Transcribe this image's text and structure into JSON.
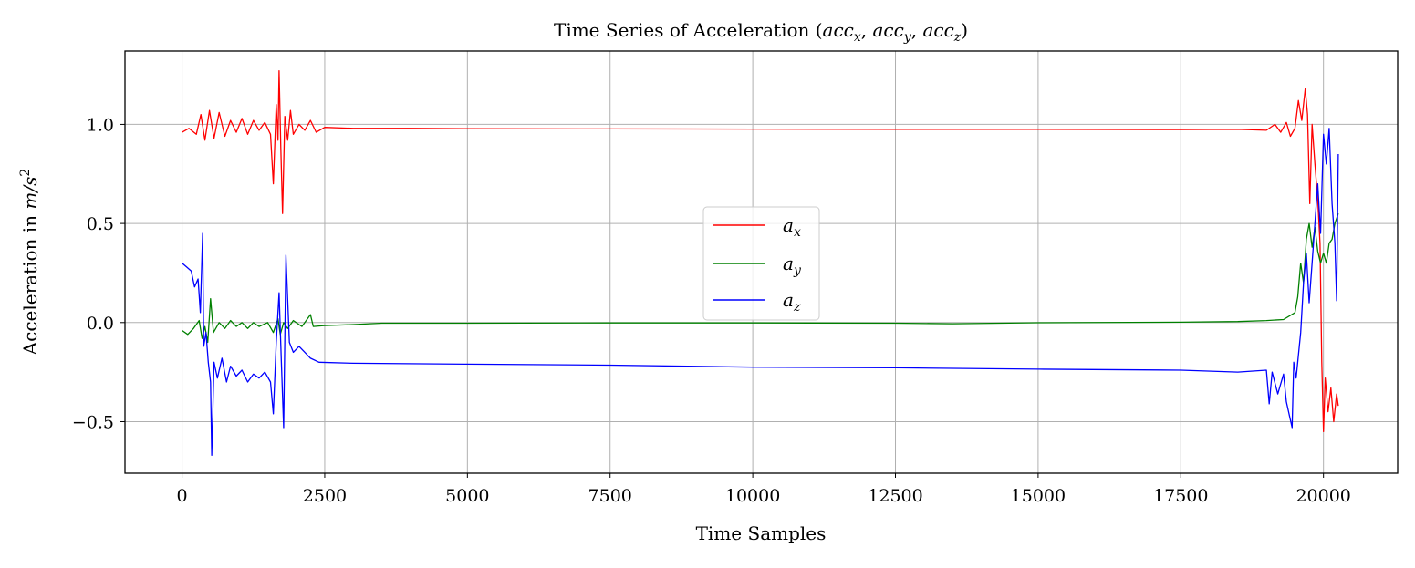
{
  "chart_data": {
    "type": "line",
    "title": "Time Series of Acceleration (accₓ, accᵧ, acc_z)",
    "xlabel": "Time Samples",
    "ylabel": "Acceleration in m/s²",
    "xlim": [
      -1000,
      21300
    ],
    "ylim": [
      -0.76,
      1.37
    ],
    "xticks": [
      0,
      2500,
      5000,
      7500,
      10000,
      12500,
      15000,
      17500,
      20000
    ],
    "xtick_labels": [
      "0",
      "2500",
      "5000",
      "7500",
      "10000",
      "12500",
      "15000",
      "17500",
      "20000"
    ],
    "yticks": [
      -0.5,
      0.0,
      0.5,
      1.0
    ],
    "ytick_labels": [
      "−0.5",
      "0.0",
      "0.5",
      "1.0"
    ],
    "grid": true,
    "legend_position": "center",
    "series": [
      {
        "name": "aₓ",
        "color": "#ff0000",
        "points": [
          [
            0,
            0.96
          ],
          [
            120,
            0.98
          ],
          [
            250,
            0.95
          ],
          [
            330,
            1.05
          ],
          [
            400,
            0.92
          ],
          [
            480,
            1.07
          ],
          [
            560,
            0.93
          ],
          [
            650,
            1.06
          ],
          [
            750,
            0.94
          ],
          [
            850,
            1.02
          ],
          [
            950,
            0.96
          ],
          [
            1050,
            1.03
          ],
          [
            1150,
            0.95
          ],
          [
            1250,
            1.02
          ],
          [
            1350,
            0.97
          ],
          [
            1450,
            1.01
          ],
          [
            1550,
            0.95
          ],
          [
            1600,
            0.7
          ],
          [
            1650,
            1.1
          ],
          [
            1680,
            0.92
          ],
          [
            1700,
            1.27
          ],
          [
            1730,
            0.88
          ],
          [
            1760,
            0.55
          ],
          [
            1800,
            1.04
          ],
          [
            1850,
            0.92
          ],
          [
            1900,
            1.07
          ],
          [
            1950,
            0.95
          ],
          [
            2050,
            1.0
          ],
          [
            2150,
            0.97
          ],
          [
            2250,
            1.02
          ],
          [
            2350,
            0.96
          ],
          [
            2500,
            0.985
          ],
          [
            3000,
            0.98
          ],
          [
            4000,
            0.98
          ],
          [
            5000,
            0.978
          ],
          [
            7500,
            0.977
          ],
          [
            10000,
            0.976
          ],
          [
            12500,
            0.975
          ],
          [
            15000,
            0.975
          ],
          [
            17500,
            0.974
          ],
          [
            18500,
            0.975
          ],
          [
            19000,
            0.97
          ],
          [
            19150,
            1.0
          ],
          [
            19250,
            0.96
          ],
          [
            19350,
            1.01
          ],
          [
            19420,
            0.94
          ],
          [
            19500,
            0.98
          ],
          [
            19560,
            1.12
          ],
          [
            19620,
            1.02
          ],
          [
            19680,
            1.18
          ],
          [
            19720,
            1.05
          ],
          [
            19760,
            0.6
          ],
          [
            19800,
            1.0
          ],
          [
            19850,
            0.8
          ],
          [
            19900,
            0.62
          ],
          [
            19940,
            0.4
          ],
          [
            19970,
            -0.2
          ],
          [
            20000,
            -0.55
          ],
          [
            20030,
            -0.28
          ],
          [
            20080,
            -0.45
          ],
          [
            20130,
            -0.33
          ],
          [
            20180,
            -0.5
          ],
          [
            20230,
            -0.36
          ],
          [
            20260,
            -0.42
          ]
        ]
      },
      {
        "name": "aᵧ",
        "color": "#008000",
        "points": [
          [
            0,
            -0.04
          ],
          [
            100,
            -0.06
          ],
          [
            200,
            -0.03
          ],
          [
            300,
            0.01
          ],
          [
            350,
            -0.08
          ],
          [
            400,
            -0.02
          ],
          [
            450,
            -0.1
          ],
          [
            500,
            0.12
          ],
          [
            550,
            -0.05
          ],
          [
            650,
            0.0
          ],
          [
            750,
            -0.03
          ],
          [
            850,
            0.01
          ],
          [
            950,
            -0.02
          ],
          [
            1050,
            0.0
          ],
          [
            1150,
            -0.03
          ],
          [
            1250,
            0.0
          ],
          [
            1350,
            -0.02
          ],
          [
            1500,
            0.0
          ],
          [
            1600,
            -0.05
          ],
          [
            1680,
            0.02
          ],
          [
            1720,
            -0.06
          ],
          [
            1780,
            0.0
          ],
          [
            1850,
            -0.03
          ],
          [
            1950,
            0.01
          ],
          [
            2100,
            -0.02
          ],
          [
            2250,
            0.04
          ],
          [
            2300,
            -0.02
          ],
          [
            2500,
            -0.015
          ],
          [
            3000,
            -0.01
          ],
          [
            3500,
            -0.003
          ],
          [
            5000,
            -0.003
          ],
          [
            7500,
            -0.002
          ],
          [
            10000,
            -0.002
          ],
          [
            12500,
            -0.003
          ],
          [
            13500,
            -0.006
          ],
          [
            15000,
            -0.001
          ],
          [
            17500,
            0.002
          ],
          [
            18500,
            0.005
          ],
          [
            19000,
            0.01
          ],
          [
            19300,
            0.015
          ],
          [
            19500,
            0.05
          ],
          [
            19550,
            0.13
          ],
          [
            19600,
            0.3
          ],
          [
            19650,
            0.2
          ],
          [
            19700,
            0.42
          ],
          [
            19750,
            0.5
          ],
          [
            19800,
            0.38
          ],
          [
            19850,
            0.48
          ],
          [
            19900,
            0.36
          ],
          [
            19950,
            0.3
          ],
          [
            20000,
            0.35
          ],
          [
            20050,
            0.3
          ],
          [
            20100,
            0.4
          ],
          [
            20150,
            0.42
          ],
          [
            20200,
            0.5
          ],
          [
            20260,
            0.55
          ]
        ]
      },
      {
        "name": "a_z",
        "color": "#0000ff",
        "points": [
          [
            0,
            0.3
          ],
          [
            80,
            0.28
          ],
          [
            160,
            0.26
          ],
          [
            220,
            0.18
          ],
          [
            280,
            0.22
          ],
          [
            320,
            0.05
          ],
          [
            360,
            0.45
          ],
          [
            380,
            -0.12
          ],
          [
            420,
            -0.05
          ],
          [
            460,
            -0.2
          ],
          [
            500,
            -0.3
          ],
          [
            520,
            -0.67
          ],
          [
            560,
            -0.2
          ],
          [
            620,
            -0.28
          ],
          [
            700,
            -0.18
          ],
          [
            780,
            -0.3
          ],
          [
            850,
            -0.22
          ],
          [
            950,
            -0.27
          ],
          [
            1050,
            -0.24
          ],
          [
            1150,
            -0.3
          ],
          [
            1250,
            -0.26
          ],
          [
            1350,
            -0.28
          ],
          [
            1450,
            -0.25
          ],
          [
            1550,
            -0.3
          ],
          [
            1600,
            -0.46
          ],
          [
            1650,
            -0.1
          ],
          [
            1700,
            0.15
          ],
          [
            1740,
            -0.2
          ],
          [
            1780,
            -0.53
          ],
          [
            1820,
            0.34
          ],
          [
            1880,
            -0.1
          ],
          [
            1950,
            -0.15
          ],
          [
            2050,
            -0.12
          ],
          [
            2150,
            -0.15
          ],
          [
            2250,
            -0.18
          ],
          [
            2400,
            -0.2
          ],
          [
            3000,
            -0.205
          ],
          [
            5000,
            -0.21
          ],
          [
            7500,
            -0.215
          ],
          [
            10000,
            -0.225
          ],
          [
            12500,
            -0.228
          ],
          [
            15000,
            -0.235
          ],
          [
            17500,
            -0.24
          ],
          [
            18500,
            -0.25
          ],
          [
            19000,
            -0.24
          ],
          [
            19050,
            -0.41
          ],
          [
            19100,
            -0.25
          ],
          [
            19200,
            -0.36
          ],
          [
            19300,
            -0.26
          ],
          [
            19350,
            -0.4
          ],
          [
            19450,
            -0.53
          ],
          [
            19480,
            -0.2
          ],
          [
            19520,
            -0.28
          ],
          [
            19600,
            -0.05
          ],
          [
            19650,
            0.2
          ],
          [
            19700,
            0.35
          ],
          [
            19750,
            0.1
          ],
          [
            19800,
            0.3
          ],
          [
            19850,
            0.5
          ],
          [
            19900,
            0.7
          ],
          [
            19950,
            0.45
          ],
          [
            20000,
            0.95
          ],
          [
            20050,
            0.8
          ],
          [
            20100,
            0.98
          ],
          [
            20150,
            0.6
          ],
          [
            20200,
            0.4
          ],
          [
            20230,
            0.11
          ],
          [
            20260,
            0.85
          ]
        ]
      }
    ]
  },
  "legend": {
    "items": [
      {
        "label": "aₓ",
        "color": "#ff0000"
      },
      {
        "label": "aᵧ",
        "color": "#008000"
      },
      {
        "label": "a_z",
        "color": "#0000ff"
      }
    ]
  }
}
